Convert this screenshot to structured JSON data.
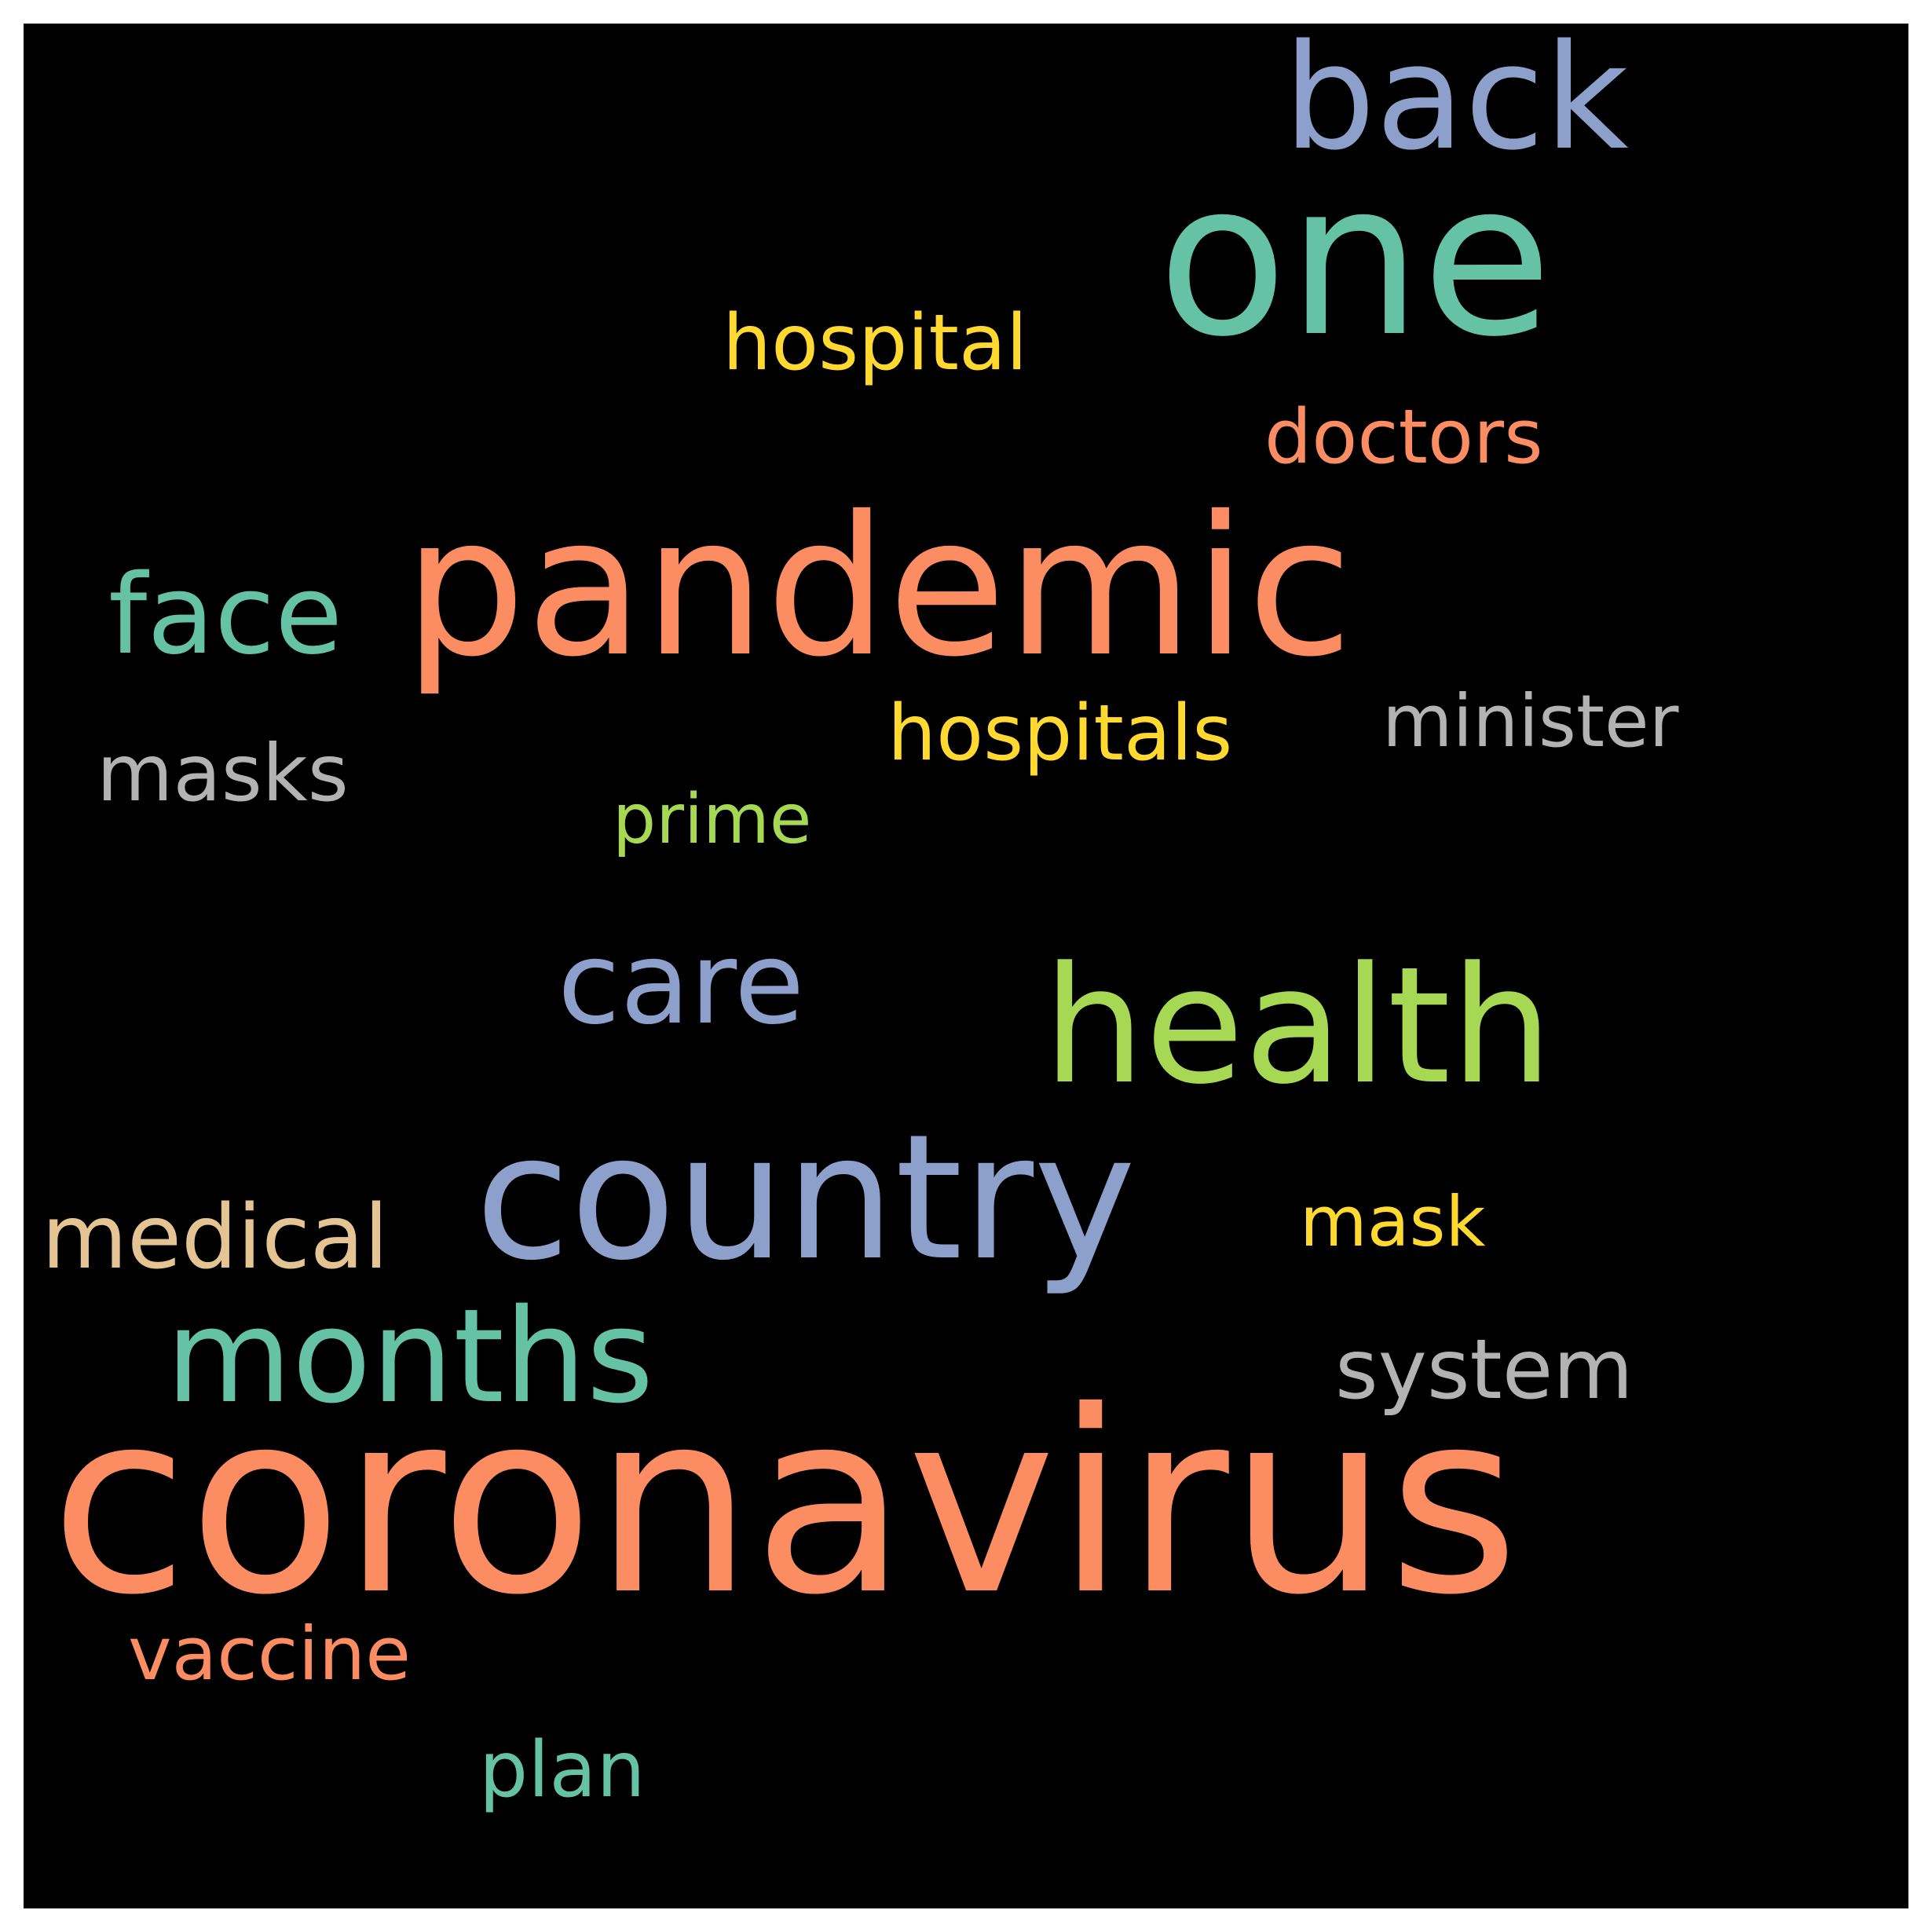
{
  "background": "#000000",
  "frame": "#ffffff",
  "words": [
    {
      "text": "coronavirus",
      "color": "#fc8d62"
    },
    {
      "text": "pandemic",
      "color": "#fc8d62"
    },
    {
      "text": "one",
      "color": "#66c2a5"
    },
    {
      "text": "country",
      "color": "#8da0cb"
    },
    {
      "text": "health",
      "color": "#a6d854"
    },
    {
      "text": "back",
      "color": "#8da0cb"
    },
    {
      "text": "months",
      "color": "#66c2a5"
    },
    {
      "text": "care",
      "color": "#8da0cb"
    },
    {
      "text": "face",
      "color": "#66c2a5"
    },
    {
      "text": "system",
      "color": "#b3b3b3"
    },
    {
      "text": "hospital",
      "color": "#ffd92f"
    },
    {
      "text": "doctors",
      "color": "#fc8d62"
    },
    {
      "text": "hospitals",
      "color": "#ffd92f"
    },
    {
      "text": "minister",
      "color": "#b3b3b3"
    },
    {
      "text": "masks",
      "color": "#b3b3b3"
    },
    {
      "text": "medical",
      "color": "#e5c494"
    },
    {
      "text": "mask",
      "color": "#ffd92f"
    },
    {
      "text": "prime",
      "color": "#a6d854"
    },
    {
      "text": "vaccine",
      "color": "#fc8d62"
    },
    {
      "text": "plan",
      "color": "#66c2a5"
    }
  ]
}
